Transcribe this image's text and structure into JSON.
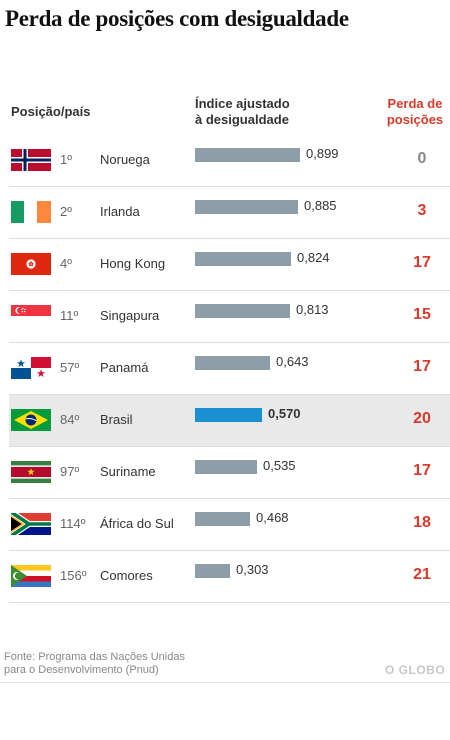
{
  "title": "Perda de posições com desigualdade",
  "headers": {
    "position_country": "Posição/país",
    "index_line1": "Índice ajustado",
    "index_line2": "à desigualdade",
    "loss_line1": "Perda de",
    "loss_line2": "posições"
  },
  "chart_data": {
    "type": "bar",
    "title": "Perda de posições com desigualdade",
    "categories": [
      "Noruega",
      "Irlanda",
      "Hong Kong",
      "Singapura",
      "Panamá",
      "Brasil",
      "Suriname",
      "África do Sul",
      "Comores"
    ],
    "ranks": [
      "1º",
      "2º",
      "4º",
      "11º",
      "57º",
      "84º",
      "97º",
      "114º",
      "156º"
    ],
    "values": [
      0.899,
      0.885,
      0.824,
      0.813,
      0.643,
      0.57,
      0.535,
      0.468,
      0.303
    ],
    "value_labels": [
      "0,899",
      "0,885",
      "0,824",
      "0,813",
      "0,643",
      "0,570",
      "0,535",
      "0,468",
      "0,303"
    ],
    "losses": [
      "0",
      "3",
      "17",
      "15",
      "17",
      "20",
      "17",
      "18",
      "21"
    ],
    "highlight": "Brasil",
    "xlim": [
      0,
      0.899
    ]
  },
  "colors": {
    "bar": "#8e9ea9",
    "highlight_bar": "#1a8fd1",
    "loss": "#d93a2b",
    "zero_loss": "#888888"
  },
  "flags": [
    "norway-flag",
    "ireland-flag",
    "hong-kong-flag",
    "singapore-flag",
    "panama-flag",
    "brazil-flag",
    "suriname-flag",
    "south-africa-flag",
    "comoros-flag"
  ],
  "source_line1": "Fonte: Programa das Nações Unidas",
  "source_line2": "para o Desenvolvimento (Pnud)",
  "logo": "O GLOBO"
}
